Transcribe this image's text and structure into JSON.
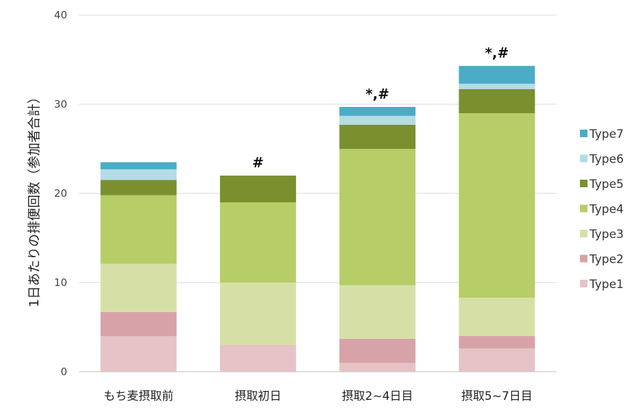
{
  "chart_data": {
    "type": "bar",
    "stacked": true,
    "title": "",
    "xlabel": "",
    "ylabel": "1日あたりの排便回数（参加者合計）",
    "ylim": [
      0,
      40
    ],
    "yticks": [
      0,
      10,
      20,
      30,
      40
    ],
    "grid": true,
    "legend_position": "right",
    "categories": [
      "もち麦摂取前",
      "摂取初日",
      "摂取2~4日目",
      "摂取5~7日目"
    ],
    "annotations": [
      "",
      "#",
      "*,#",
      "*,#"
    ],
    "series": [
      {
        "name": "Type1",
        "color": "#e6c3c6",
        "values": [
          4.0,
          3.0,
          1.0,
          2.6
        ]
      },
      {
        "name": "Type2",
        "color": "#d8a3a8",
        "values": [
          2.7,
          0.0,
          2.7,
          1.4
        ]
      },
      {
        "name": "Type3",
        "color": "#d6e0a6",
        "values": [
          5.4,
          7.0,
          6.0,
          4.3
        ]
      },
      {
        "name": "Type4",
        "color": "#b7cd68",
        "values": [
          7.7,
          9.0,
          15.3,
          20.7
        ]
      },
      {
        "name": "Type5",
        "color": "#7a902e",
        "values": [
          1.7,
          3.0,
          2.7,
          2.7
        ]
      },
      {
        "name": "Type6",
        "color": "#b3dce6",
        "values": [
          1.2,
          0.0,
          1.0,
          0.6
        ]
      },
      {
        "name": "Type7",
        "color": "#4bacc6",
        "values": [
          0.8,
          0.0,
          1.0,
          2.0
        ]
      }
    ]
  }
}
